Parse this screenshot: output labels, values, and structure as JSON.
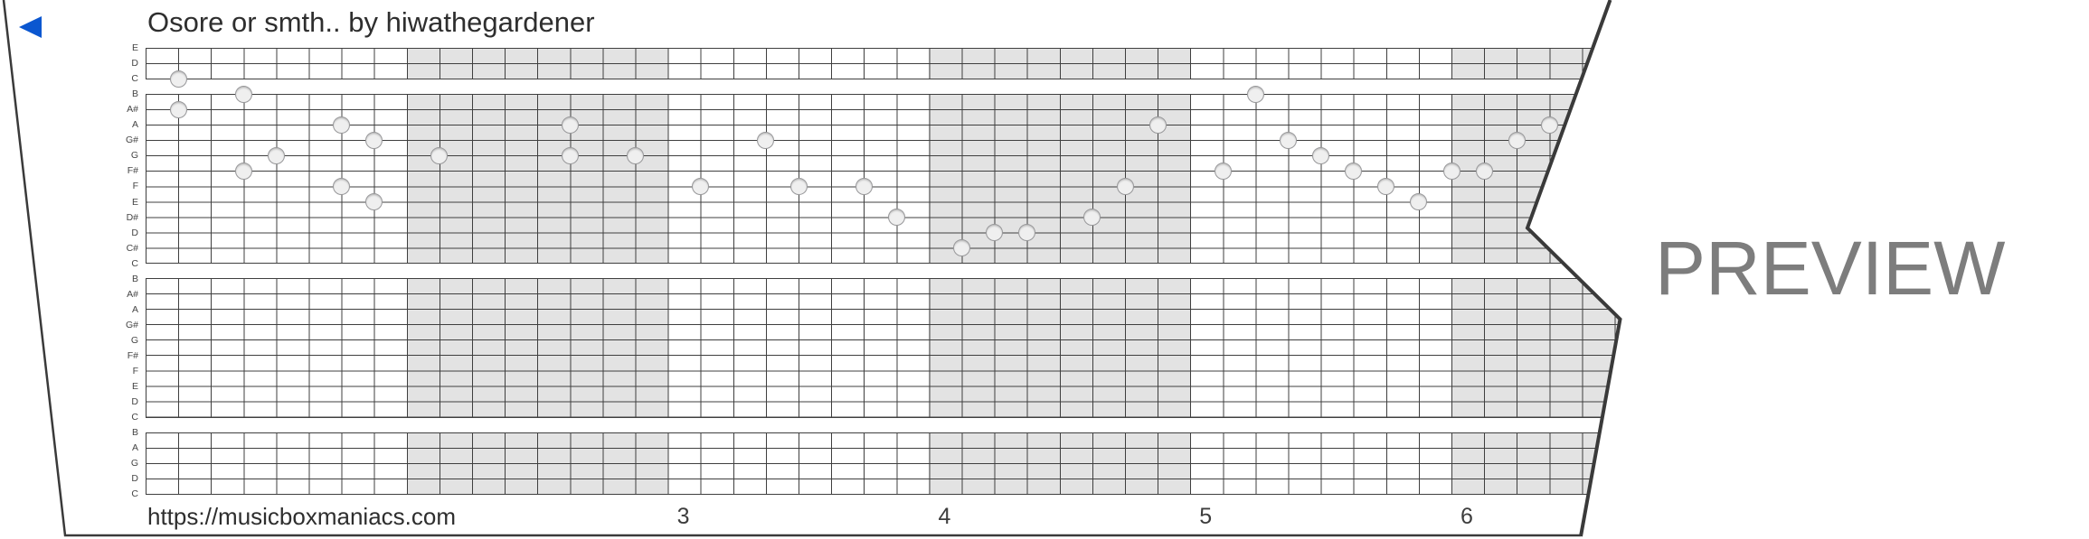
{
  "header": {
    "title": "Osore or smth.. by hiwathegardener",
    "back_icon": "blue-left-triangle"
  },
  "footer": {
    "url_label": "https://musicboxmaniacs.com",
    "measure_numbers": [
      {
        "label": "3",
        "measure": 2
      },
      {
        "label": "4",
        "measure": 3
      },
      {
        "label": "5",
        "measure": 4
      },
      {
        "label": "6",
        "measure": 5
      }
    ]
  },
  "watermark": {
    "label": "PREVIEW"
  },
  "grid": {
    "note_rows": [
      "E",
      "D",
      "C",
      "B",
      "A#",
      "A",
      "G#",
      "G",
      "F#",
      "F",
      "E",
      "D#",
      "D",
      "C#",
      "C",
      "B",
      "A#",
      "A",
      "G#",
      "G",
      "F#",
      "F",
      "E",
      "D",
      "C",
      "B",
      "A",
      "G",
      "D",
      "C"
    ],
    "sections": [
      {
        "first_row": 0,
        "last_row": 2
      },
      {
        "first_row": 3,
        "last_row": 14
      },
      {
        "first_row": 15,
        "last_row": 24
      },
      {
        "first_row": 25,
        "last_row": 29
      }
    ],
    "shaded_measures": [
      1,
      3,
      5
    ],
    "notes": [
      {
        "col": 1,
        "row": 2,
        "pitch": "C"
      },
      {
        "col": 1,
        "row": 4,
        "pitch": "A#"
      },
      {
        "col": 3,
        "row": 3,
        "pitch": "B"
      },
      {
        "col": 3,
        "row": 8,
        "pitch": "F#"
      },
      {
        "col": 4,
        "row": 7,
        "pitch": "G"
      },
      {
        "col": 6,
        "row": 5,
        "pitch": "A"
      },
      {
        "col": 6,
        "row": 9,
        "pitch": "F"
      },
      {
        "col": 7,
        "row": 6,
        "pitch": "G#"
      },
      {
        "col": 7,
        "row": 10,
        "pitch": "E"
      },
      {
        "col": 9,
        "row": 7,
        "pitch": "G"
      },
      {
        "col": 13,
        "row": 5,
        "pitch": "A"
      },
      {
        "col": 13,
        "row": 7,
        "pitch": "G"
      },
      {
        "col": 15,
        "row": 7,
        "pitch": "G"
      },
      {
        "col": 17,
        "row": 9,
        "pitch": "F"
      },
      {
        "col": 19,
        "row": 6,
        "pitch": "G#"
      },
      {
        "col": 20,
        "row": 9,
        "pitch": "F"
      },
      {
        "col": 22,
        "row": 9,
        "pitch": "F"
      },
      {
        "col": 23,
        "row": 11,
        "pitch": "D#"
      },
      {
        "col": 25,
        "row": 13,
        "pitch": "C#"
      },
      {
        "col": 26,
        "row": 12,
        "pitch": "D"
      },
      {
        "col": 27,
        "row": 12,
        "pitch": "D"
      },
      {
        "col": 29,
        "row": 11,
        "pitch": "D#"
      },
      {
        "col": 30,
        "row": 9,
        "pitch": "F"
      },
      {
        "col": 31,
        "row": 5,
        "pitch": "A"
      },
      {
        "col": 33,
        "row": 8,
        "pitch": "F#"
      },
      {
        "col": 34,
        "row": 3,
        "pitch": "B"
      },
      {
        "col": 35,
        "row": 6,
        "pitch": "G#"
      },
      {
        "col": 36,
        "row": 7,
        "pitch": "G"
      },
      {
        "col": 37,
        "row": 8,
        "pitch": "F#"
      },
      {
        "col": 38,
        "row": 9,
        "pitch": "F"
      },
      {
        "col": 39,
        "row": 10,
        "pitch": "E"
      },
      {
        "col": 40,
        "row": 8,
        "pitch": "F#"
      },
      {
        "col": 41,
        "row": 8,
        "pitch": "F#"
      },
      {
        "col": 42,
        "row": 6,
        "pitch": "G#"
      },
      {
        "col": 43,
        "row": 5,
        "pitch": "A"
      }
    ]
  },
  "colors": {
    "accent_blue": "#0b57d0",
    "grid_line": "#3f3f3f",
    "measure_shading": "#e3e3e3",
    "note_fill": "#efefef",
    "note_border": "#98989a",
    "edge_line": "#3a3a3a",
    "title_text": "#2e2e2e",
    "label_text": "#454545",
    "number_text": "#3d3d3d",
    "watermark_text": "#7d7d7d"
  }
}
